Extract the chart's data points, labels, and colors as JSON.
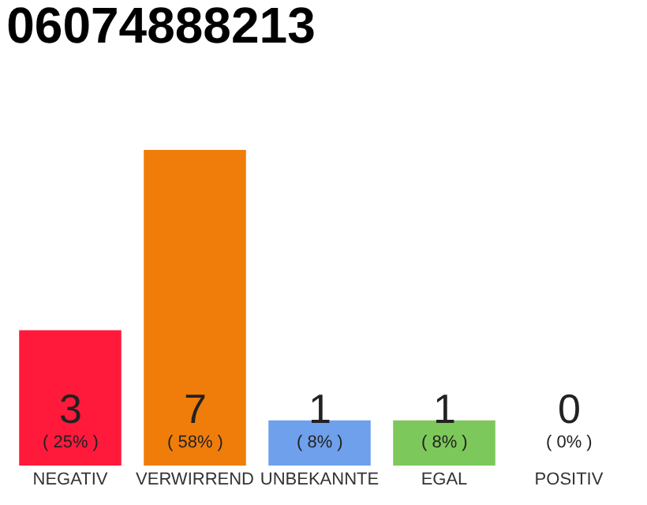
{
  "chart_data": {
    "type": "bar",
    "title": "06074888213",
    "categories": [
      "NEGATIV",
      "VERWIRREND",
      "UNBEKANNTE",
      "EGAL",
      "POSITIV"
    ],
    "values": [
      3,
      7,
      1,
      1,
      0
    ],
    "colors": [
      "#ff1a3c",
      "#f07d0a",
      "#6ea0ec",
      "#7dc85a",
      "#eeeeee"
    ],
    "value_labels": [
      "3\n( 25% )",
      "7\n( 58% )",
      "1\n( 8% )",
      "1\n( 8% )",
      "0\n( 0% )"
    ],
    "legend": false
  }
}
